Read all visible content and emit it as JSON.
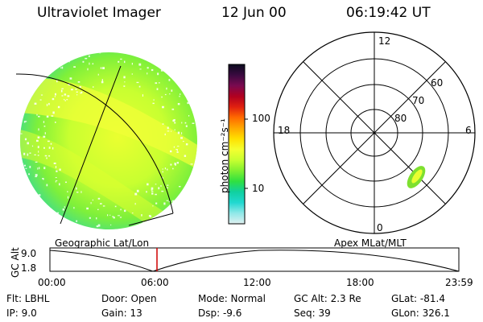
{
  "header": {
    "instrument": "Ultraviolet Imager",
    "date": "12 Jun 00",
    "time": "06:19:42 UT"
  },
  "colorbar": {
    "label": "photon cm⁻²s⁻¹",
    "ticks": [
      "100",
      "10"
    ],
    "colors": [
      "#0b0b1e",
      "#3a0a40",
      "#7a0a50",
      "#b00020",
      "#e02010",
      "#ff6a00",
      "#ffa800",
      "#ffe000",
      "#f4ff30",
      "#c8ff30",
      "#80f030",
      "#30e040",
      "#10d0a0",
      "#20d8d0",
      "#90e8e8",
      "#e0f0f0"
    ]
  },
  "geographic_panel": {
    "label": "Geographic Lat/Lon"
  },
  "polar_panel": {
    "label": "Apex MLat/MLT",
    "mlt_labels": {
      "top": "12",
      "left": "18",
      "right": "6",
      "bottom": "0"
    },
    "lat_labels": [
      "60",
      "70",
      "80"
    ]
  },
  "altitude_plot": {
    "ylabel": "GC Alt",
    "yticks": [
      "9.0",
      "1.8"
    ],
    "xticks": [
      "00:00",
      "06:00",
      "12:00",
      "18:00",
      "23:59"
    ],
    "marker_color": "#d00000"
  },
  "footer": {
    "filter": "Flt: LBHL",
    "ip": "IP:  9.0",
    "door": "Door: Open",
    "gain": "Gain: 13",
    "mode": "Mode: Normal",
    "dsp": "Dsp:    -9.6",
    "gc_alt": "GC Alt: 2.3 Re",
    "seq": "Seq: 39",
    "glat": "GLat: -81.4",
    "glon": "GLon: 326.1"
  }
}
